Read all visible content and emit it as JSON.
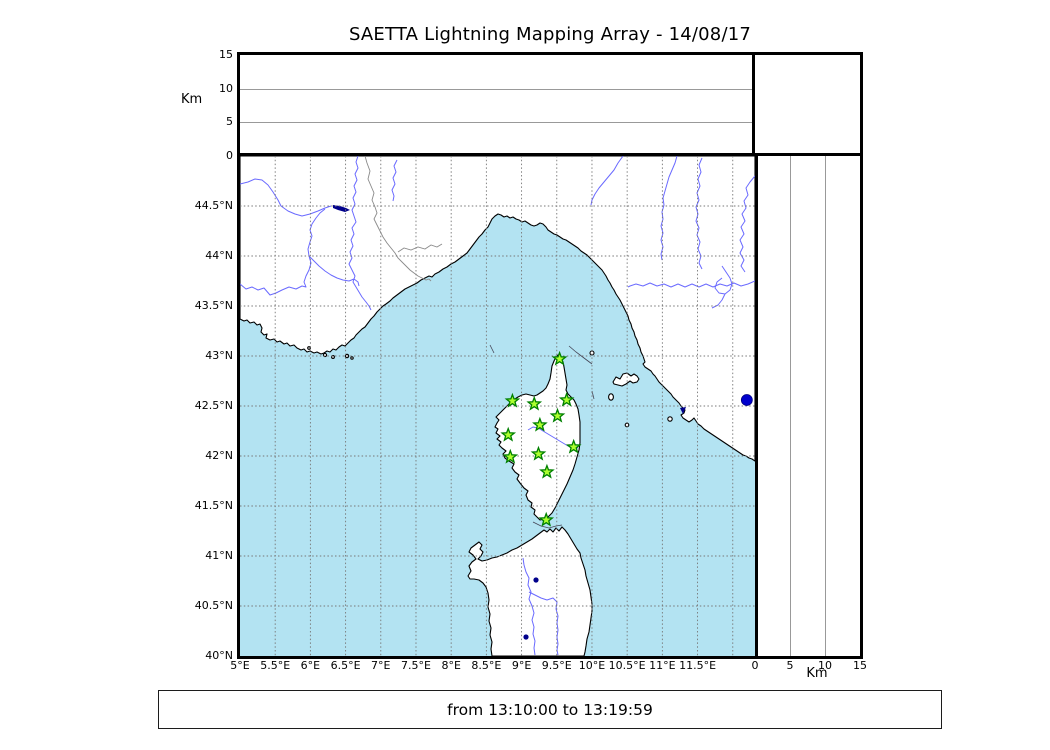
{
  "title": "SAETTA Lightning Mapping Array - 14/08/17",
  "footer": {
    "time_range": "from 13:10:00 to 13:19:59"
  },
  "colors": {
    "sea": "#b3e3f2",
    "land": "#ffffff",
    "coastline": "#000000",
    "river": "#6a6aff",
    "lake": "#00008b",
    "country_border": "#8a8a8a",
    "grid": "#777777",
    "panel_gridline": "#999999",
    "station_fill": "#adff2f",
    "station_edge": "#008000",
    "marker_fill": "#0000cd"
  },
  "map": {
    "lon_range": [
      5,
      12.316
    ],
    "lat_range": [
      40,
      45
    ]
  },
  "axes": {
    "longitude": {
      "ticks": [
        {
          "value": 5,
          "label": "5°E"
        },
        {
          "value": 5.5,
          "label": "5.5°E"
        },
        {
          "value": 6,
          "label": "6°E"
        },
        {
          "value": 6.5,
          "label": "6.5°E"
        },
        {
          "value": 7,
          "label": "7°E"
        },
        {
          "value": 7.5,
          "label": "7.5°E"
        },
        {
          "value": 8,
          "label": "8°E"
        },
        {
          "value": 8.5,
          "label": "8.5°E"
        },
        {
          "value": 9,
          "label": "9°E"
        },
        {
          "value": 9.5,
          "label": "9.5°E"
        },
        {
          "value": 10,
          "label": "10°E"
        },
        {
          "value": 10.5,
          "label": "10.5°E"
        },
        {
          "value": 11,
          "label": "11°E"
        },
        {
          "value": 11.5,
          "label": "11.5°E"
        }
      ],
      "extra_gridlines": [
        12.0
      ]
    },
    "latitude": {
      "ticks": [
        {
          "value": 44.5,
          "label": "44.5°N"
        },
        {
          "value": 44,
          "label": "44°N"
        },
        {
          "value": 43.5,
          "label": "43.5°N"
        },
        {
          "value": 43,
          "label": "43°N"
        },
        {
          "value": 42.5,
          "label": "42.5°N"
        },
        {
          "value": 42,
          "label": "42°N"
        },
        {
          "value": 41.5,
          "label": "41.5°N"
        },
        {
          "value": 41,
          "label": "41°N"
        },
        {
          "value": 40.5,
          "label": "40.5°N"
        },
        {
          "value": 40,
          "label": "40°N"
        }
      ]
    },
    "altitude": {
      "label": "Km",
      "max": 15,
      "ticks": [
        {
          "value": 0,
          "label": "0"
        },
        {
          "value": 5,
          "label": "5"
        },
        {
          "value": 10,
          "label": "10"
        },
        {
          "value": 15,
          "label": "15"
        }
      ]
    }
  },
  "stations": [
    {
      "lon": 9.54,
      "lat": 42.97
    },
    {
      "lon": 8.87,
      "lat": 42.55
    },
    {
      "lon": 9.18,
      "lat": 42.52
    },
    {
      "lon": 9.64,
      "lat": 42.56
    },
    {
      "lon": 9.51,
      "lat": 42.4
    },
    {
      "lon": 9.26,
      "lat": 42.31
    },
    {
      "lon": 8.81,
      "lat": 42.21
    },
    {
      "lon": 9.74,
      "lat": 42.09
    },
    {
      "lon": 9.24,
      "lat": 42.02
    },
    {
      "lon": 8.84,
      "lat": 41.99
    },
    {
      "lon": 9.36,
      "lat": 41.84
    },
    {
      "lon": 9.35,
      "lat": 41.36
    }
  ],
  "marker": {
    "lon": 12.2,
    "lat": 42.56
  }
}
